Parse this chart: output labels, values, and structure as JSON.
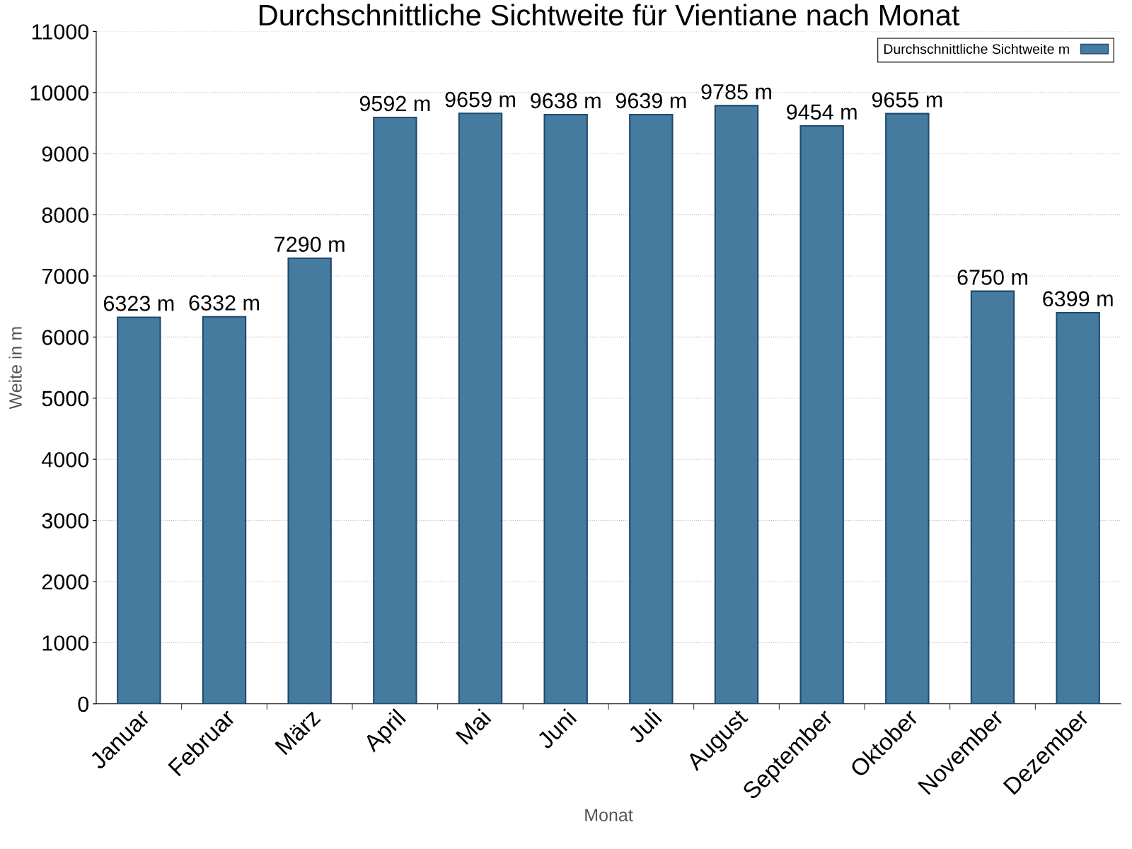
{
  "chart_data": {
    "type": "bar",
    "title": "Durchschnittliche Sichtweite für Vientiane nach Monat",
    "xlabel": "Monat",
    "ylabel": "Weite in m",
    "categories": [
      "Januar",
      "Februar",
      "März",
      "April",
      "Mai",
      "Juni",
      "Juli",
      "August",
      "September",
      "Oktober",
      "November",
      "Dezember"
    ],
    "series": [
      {
        "name": "Durchschnittliche Sichtweite m",
        "color": "#467ba0",
        "values": [
          6323,
          6332,
          7290,
          9592,
          9659,
          9638,
          9639,
          9785,
          9454,
          9655,
          6750,
          6399
        ],
        "value_labels": [
          "6323 m",
          "6332 m",
          "7290 m",
          "9592 m",
          "9659 m",
          "9638 m",
          "9639 m",
          "9785 m",
          "9454 m",
          "9655 m",
          "6750 m",
          "6399 m"
        ]
      }
    ],
    "ylim": [
      0,
      11000
    ],
    "yticks": [
      0,
      1000,
      2000,
      3000,
      4000,
      5000,
      6000,
      7000,
      8000,
      9000,
      10000,
      11000
    ],
    "grid": "y",
    "legend": "top right"
  }
}
